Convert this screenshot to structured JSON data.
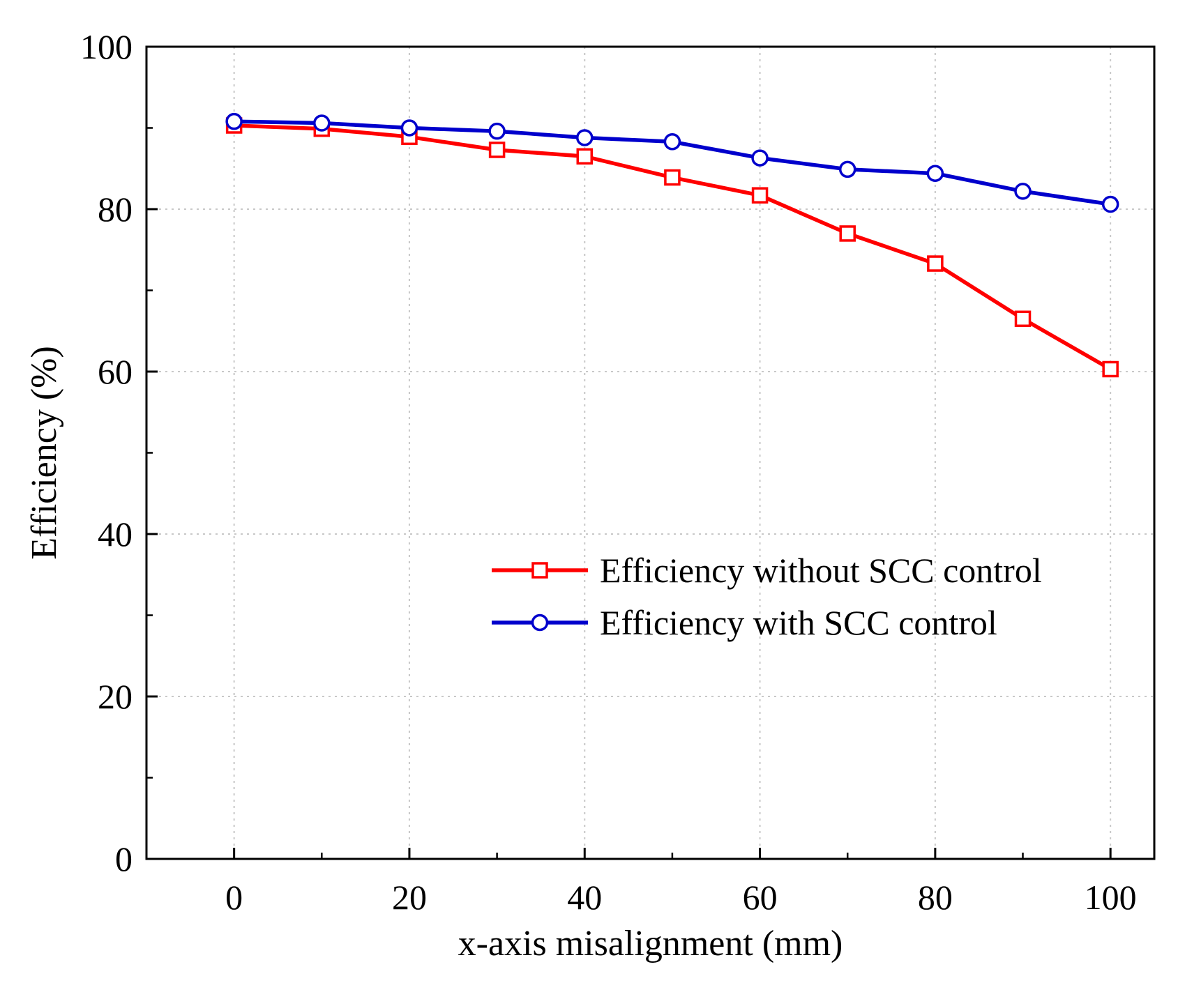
{
  "chart_data": {
    "type": "line",
    "title": "",
    "xlabel": "x-axis misalignment (mm)",
    "ylabel": "Efficiency (%)",
    "xlim": [
      -10,
      105
    ],
    "ylim": [
      0,
      100
    ],
    "x_ticks": [
      0,
      20,
      40,
      60,
      80,
      100
    ],
    "y_ticks": [
      0,
      20,
      40,
      60,
      80,
      100
    ],
    "x_minor_ticks": [
      10,
      30,
      50,
      70,
      90
    ],
    "y_minor_ticks": [
      10,
      30,
      50,
      70,
      90
    ],
    "grid": true,
    "legend_position": "center-right",
    "x": [
      0,
      10,
      20,
      30,
      40,
      50,
      60,
      70,
      80,
      90,
      100
    ],
    "series": [
      {
        "name": "Efficiency without SCC control",
        "color": "#ff0000",
        "marker": "square",
        "values": [
          90.3,
          89.9,
          88.9,
          87.3,
          86.5,
          83.9,
          81.7,
          77.0,
          73.3,
          66.5,
          60.3
        ]
      },
      {
        "name": "Efficiency with SCC control",
        "color": "#0000cc",
        "marker": "circle",
        "values": [
          90.8,
          90.6,
          90.0,
          89.6,
          88.8,
          88.3,
          86.3,
          84.9,
          84.4,
          82.2,
          80.6
        ]
      }
    ]
  }
}
